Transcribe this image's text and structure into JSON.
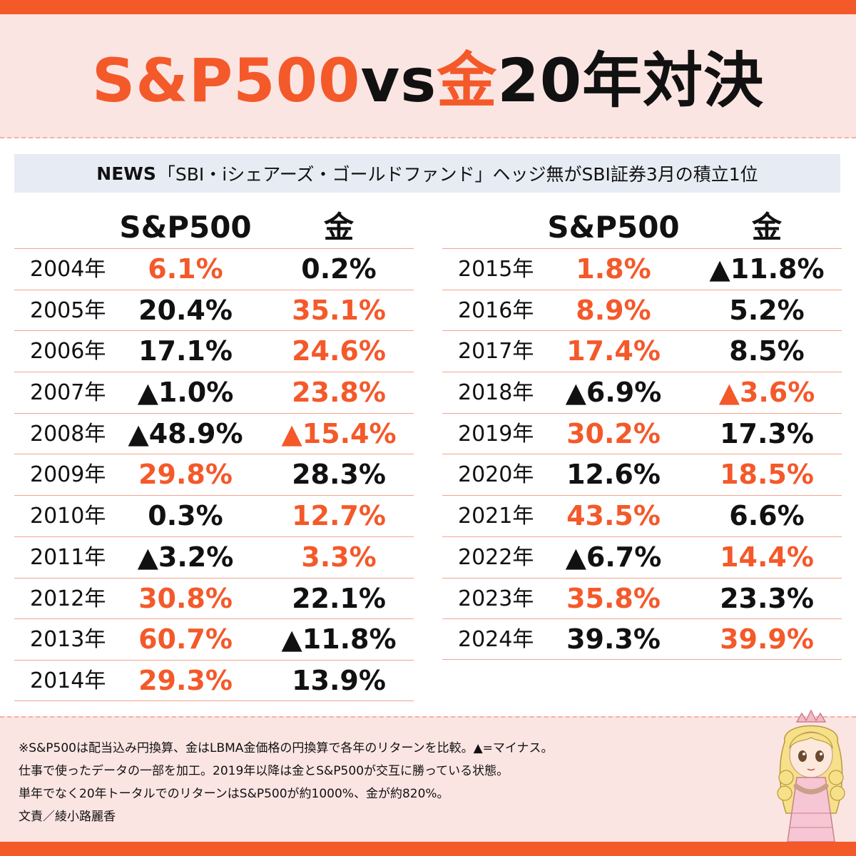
{
  "title": {
    "part1": "S&P500",
    "part2": "vs",
    "part3": "金",
    "part4": "20年対決"
  },
  "news": {
    "label": "NEWS",
    "text": "「SBI・iシェアーズ・ゴールドファンド」ヘッジ無がSBI証券3月の積立1位"
  },
  "table_left": {
    "headers": [
      "S&P500",
      "金"
    ],
    "rows": [
      {
        "year": "2004年",
        "sp500": "6.1%",
        "sp_color": "orange",
        "gold": "0.2%",
        "gold_color": "black"
      },
      {
        "year": "2005年",
        "sp500": "20.4%",
        "sp_color": "black",
        "gold": "35.1%",
        "gold_color": "orange"
      },
      {
        "year": "2006年",
        "sp500": "17.1%",
        "sp_color": "black",
        "gold": "24.6%",
        "gold_color": "orange"
      },
      {
        "year": "2007年",
        "sp500": "▲1.0%",
        "sp_color": "black",
        "gold": "23.8%",
        "gold_color": "orange"
      },
      {
        "year": "2008年",
        "sp500": "▲48.9%",
        "sp_color": "black",
        "gold": "▲15.4%",
        "gold_color": "orange"
      },
      {
        "year": "2009年",
        "sp500": "29.8%",
        "sp_color": "orange",
        "gold": "28.3%",
        "gold_color": "black"
      },
      {
        "year": "2010年",
        "sp500": "0.3%",
        "sp_color": "black",
        "gold": "12.7%",
        "gold_color": "orange"
      },
      {
        "year": "2011年",
        "sp500": "▲3.2%",
        "sp_color": "black",
        "gold": "3.3%",
        "gold_color": "orange"
      },
      {
        "year": "2012年",
        "sp500": "30.8%",
        "sp_color": "orange",
        "gold": "22.1%",
        "gold_color": "black"
      },
      {
        "year": "2013年",
        "sp500": "60.7%",
        "sp_color": "orange",
        "gold": "▲11.8%",
        "gold_color": "black"
      },
      {
        "year": "2014年",
        "sp500": "29.3%",
        "sp_color": "orange",
        "gold": "13.9%",
        "gold_color": "black"
      }
    ]
  },
  "table_right": {
    "headers": [
      "S&P500",
      "金"
    ],
    "rows": [
      {
        "year": "2015年",
        "sp500": "1.8%",
        "sp_color": "orange",
        "gold": "▲11.8%",
        "gold_color": "black"
      },
      {
        "year": "2016年",
        "sp500": "8.9%",
        "sp_color": "orange",
        "gold": "5.2%",
        "gold_color": "black"
      },
      {
        "year": "2017年",
        "sp500": "17.4%",
        "sp_color": "orange",
        "gold": "8.5%",
        "gold_color": "black"
      },
      {
        "year": "2018年",
        "sp500": "▲6.9%",
        "sp_color": "black",
        "gold": "▲3.6%",
        "gold_color": "orange"
      },
      {
        "year": "2019年",
        "sp500": "30.2%",
        "sp_color": "orange",
        "gold": "17.3%",
        "gold_color": "black"
      },
      {
        "year": "2020年",
        "sp500": "12.6%",
        "sp_color": "black",
        "gold": "18.5%",
        "gold_color": "orange"
      },
      {
        "year": "2021年",
        "sp500": "43.5%",
        "sp_color": "orange",
        "gold": "6.6%",
        "gold_color": "black"
      },
      {
        "year": "2022年",
        "sp500": "▲6.7%",
        "sp_color": "black",
        "gold": "14.4%",
        "gold_color": "orange"
      },
      {
        "year": "2023年",
        "sp500": "35.8%",
        "sp_color": "orange",
        "gold": "23.3%",
        "gold_color": "black"
      },
      {
        "year": "2024年",
        "sp500": "39.3%",
        "sp_color": "black",
        "gold": "39.9%",
        "gold_color": "orange"
      }
    ]
  },
  "notes": [
    "※S&P500は配当込み円換算、金はLBMA金価格の円換算で各年のリターンを比較。▲=マイナス。",
    "仕事で使ったデータの一部を加工。2019年以降は金とS&P500が交互に勝っている状態。",
    "単年でなく20年トータルでのリターンはS&P500が約1000%、金が約820%。",
    "文責／綾小路麗香"
  ],
  "colors": {
    "accent": "#f4592a",
    "header_bg": "#fbe5e3",
    "news_bg": "#e7ebf3",
    "rule": "#f3a58f"
  },
  "icons": {
    "character": "girl-mascot-illustration"
  }
}
